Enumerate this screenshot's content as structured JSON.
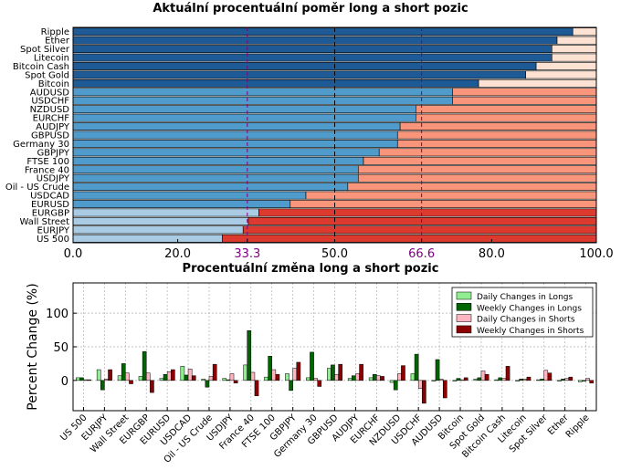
{
  "chart_data": [
    {
      "type": "bar",
      "orientation": "horizontal",
      "stacked": true,
      "title": "Aktuální procentuální poměr long a short pozic",
      "categories": [
        "Ripple",
        "Ether",
        "Spot Silver",
        "Litecoin",
        "Bitcoin Cash",
        "Spot Gold",
        "Bitcoin",
        "AUDUSD",
        "USDCHF",
        "NZDUSD",
        "EURCHF",
        "AUDJPY",
        "GBPUSD",
        "Germany 30",
        "GBPJPY",
        "FTSE 100",
        "France 40",
        "USDJPY",
        "Oil - US Crude",
        "USDCAD",
        "EURUSD",
        "EURGBP",
        "Wall Street",
        "EURJPY",
        "US 500"
      ],
      "long_pct": [
        95.5,
        92.5,
        91.5,
        91.5,
        88.5,
        86.5,
        77.5,
        72.5,
        72.5,
        65.5,
        65.5,
        62.5,
        62.0,
        62.0,
        58.5,
        55.5,
        54.5,
        54.5,
        52.5,
        44.5,
        41.5,
        35.5,
        33.5,
        32.5,
        28.5
      ],
      "xlim": [
        0,
        100
      ],
      "xticks": [
        "0.0",
        "20.0",
        "33.3",
        "50.0",
        "66.6",
        "80.0",
        "100.0"
      ],
      "reference_lines": [
        33.3,
        50.0,
        66.6
      ],
      "grid": true,
      "colors": {
        "long_dark": "#1e5a96",
        "long_mid": "#4f9bcc",
        "long_light": "#a9cbe3",
        "short_light": "#fde2d4",
        "short_mid": "#f8957a",
        "short_dark": "#dd3a2f",
        "reference_purple": "#800080"
      }
    },
    {
      "type": "bar",
      "title": "Procentuální změna long a short pozic",
      "ylabel": "Percent Change (%)",
      "ylim": [
        -45,
        145
      ],
      "yticks": [
        "0",
        "50",
        "100"
      ],
      "grid": true,
      "legend_position": "top-right",
      "categories": [
        "US 500",
        "EURJPY",
        "Wall Street",
        "EURGBP",
        "EURUSD",
        "USDCAD",
        "Oil - US Crude",
        "USDJPY",
        "France 40",
        "FTSE 100",
        "GBPJPY",
        "Germany 30",
        "GBPUSD",
        "AUDJPY",
        "EURCHF",
        "NZDUSD",
        "USDCHF",
        "AUDUSD",
        "Bitcoin",
        "Spot Gold",
        "Bitcoin Cash",
        "Litecoin",
        "Spot Silver",
        "Ether",
        "Ripple"
      ],
      "series": [
        {
          "name": "Daily Changes in Longs",
          "color": "#90ee90",
          "values": [
            4,
            16,
            7,
            6,
            3,
            21,
            2,
            3,
            23,
            5,
            10,
            4,
            18,
            3,
            4,
            -3,
            10,
            0,
            -1,
            2,
            1,
            0,
            1,
            -1,
            -2
          ]
        },
        {
          "name": "Weekly Changes in Longs",
          "color": "#006400",
          "values": [
            4,
            -14,
            25,
            43,
            9,
            8,
            -10,
            1,
            74,
            36,
            -15,
            42,
            23,
            7,
            9,
            -14,
            39,
            31,
            3,
            4,
            4,
            2,
            2,
            2,
            -1
          ]
        },
        {
          "name": "Daily Changes in Shorts",
          "color": "#ffb6c1",
          "values": [
            1,
            2,
            11,
            11,
            13,
            17,
            6,
            10,
            12,
            16,
            18,
            3,
            9,
            10,
            7,
            10,
            -12,
            2,
            1,
            14,
            3,
            2,
            15,
            3,
            3
          ]
        },
        {
          "name": "Weekly Changes in Shorts",
          "color": "#8b0000",
          "values": [
            1,
            16,
            -5,
            -18,
            16,
            7,
            24,
            -4,
            -23,
            9,
            27,
            -9,
            24,
            24,
            6,
            22,
            -34,
            -26,
            4,
            9,
            21,
            5,
            11,
            5,
            -4
          ]
        }
      ]
    }
  ]
}
